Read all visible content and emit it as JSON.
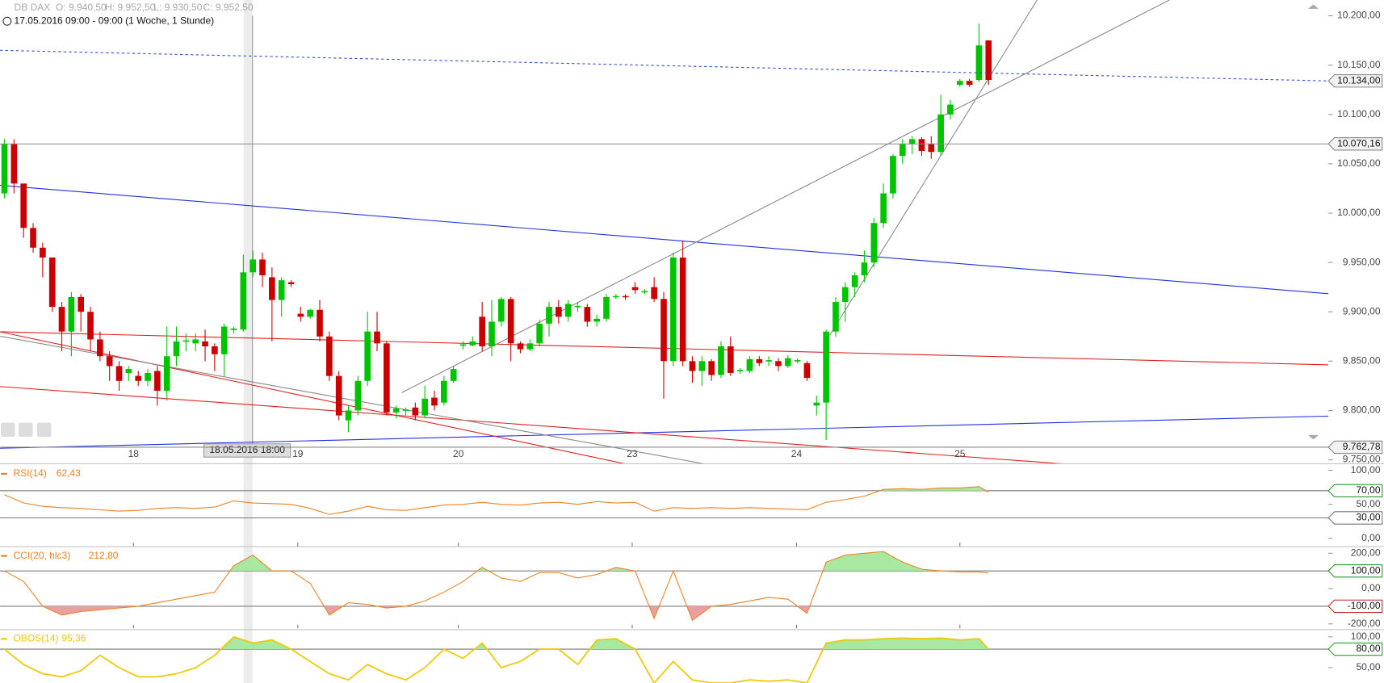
{
  "header": {
    "instrument": "DB DAX",
    "open": "O: 9.940,50",
    "high": "H: 9.952,50",
    "low": "L: 9.930,50",
    "close": "C: 9.952,50",
    "period": "17.05.2016 09:00 - 09:00 (1 Woche, 1 Stunde)"
  },
  "crosshair_label": "18.05.2016 18:00",
  "chart_data": [
    {
      "type": "candlestick",
      "up_color": "#00c400",
      "down_color": "#cc0000",
      "open": [
        10020,
        10070,
        10030,
        9985,
        9965,
        9955,
        9905,
        9880,
        9915,
        9900,
        9872,
        9855,
        9845,
        9838,
        9835,
        9830,
        9840,
        9820,
        9855,
        9870,
        9868,
        9870,
        9865,
        9857,
        9882,
        9882,
        9940,
        9953,
        9935,
        9912,
        9930,
        9898,
        9895,
        9902,
        9875,
        9835,
        9790,
        9800,
        9830,
        9880,
        9868,
        9798,
        9800,
        9803,
        9795,
        9813,
        9808,
        9830,
        9866,
        9866,
        9895,
        9865,
        9890,
        9913,
        9868,
        9862,
        9868,
        9888,
        9905,
        9895,
        9905,
        9905,
        9890,
        9893,
        9915,
        9916,
        9925,
        9920,
        9925,
        9913,
        9850,
        9955,
        9850,
        9840,
        9850,
        9836,
        9865,
        9840,
        9840,
        9852,
        9850,
        9850,
        9845,
        9850,
        9848,
        9805,
        9808,
        9880,
        9910,
        9925,
        9937,
        9950,
        9990,
        10020,
        10058,
        10070,
        10075,
        10070,
        10062,
        10100,
        10130,
        10134,
        10135,
        10175
      ],
      "high": [
        10075,
        10075,
        10030,
        9990,
        9970,
        9955,
        9910,
        9920,
        9918,
        9905,
        9880,
        9860,
        9850,
        9845,
        9840,
        9842,
        9845,
        9885,
        9885,
        9878,
        9878,
        9882,
        9868,
        9888,
        9885,
        9958,
        9962,
        9960,
        9945,
        9935,
        9932,
        9905,
        9903,
        9912,
        9880,
        9840,
        9805,
        9835,
        9900,
        9900,
        9870,
        9805,
        9803,
        9808,
        9825,
        9820,
        9835,
        9845,
        9870,
        9875,
        9910,
        9912,
        9915,
        9915,
        9870,
        9872,
        9892,
        9910,
        9912,
        9912,
        9910,
        9908,
        9897,
        9918,
        9918,
        9918,
        9930,
        9923,
        9935,
        9920,
        9960,
        9972,
        9855,
        9855,
        9852,
        9870,
        9875,
        9843,
        9855,
        9855,
        9855,
        9853,
        9856,
        9853,
        9850,
        9815,
        9882,
        9915,
        9930,
        9940,
        9962,
        9995,
        10030,
        10060,
        10075,
        10078,
        10077,
        10078,
        10120,
        10115,
        10136,
        10136,
        10192,
        10175
      ],
      "low": [
        10015,
        10020,
        9975,
        9960,
        9935,
        9900,
        9860,
        9855,
        9880,
        9860,
        9850,
        9830,
        9820,
        9830,
        9825,
        9825,
        9805,
        9810,
        9845,
        9860,
        9860,
        9850,
        9840,
        9835,
        9878,
        9880,
        9935,
        9925,
        9870,
        9895,
        9925,
        9890,
        9893,
        9870,
        9830,
        9790,
        9778,
        9795,
        9825,
        9860,
        9795,
        9792,
        9795,
        9790,
        9792,
        9800,
        9805,
        9828,
        9862,
        9865,
        9860,
        9855,
        9885,
        9850,
        9858,
        9860,
        9865,
        9875,
        9888,
        9890,
        9900,
        9885,
        9885,
        9890,
        9913,
        9912,
        9918,
        9918,
        9910,
        9812,
        9845,
        9845,
        9828,
        9825,
        9830,
        9833,
        9835,
        9837,
        9838,
        9845,
        9845,
        9840,
        9843,
        9848,
        9830,
        9795,
        9770,
        9875,
        9890,
        9915,
        9930,
        9945,
        9985,
        10015,
        10050,
        10060,
        10058,
        10055,
        10058,
        10095,
        10128,
        10128,
        10133,
        10130
      ],
      "close": [
        10070,
        10030,
        9985,
        9965,
        9955,
        9905,
        9880,
        9915,
        9900,
        9872,
        9855,
        9845,
        9830,
        9842,
        9830,
        9838,
        9820,
        9855,
        9870,
        9871,
        9872,
        9865,
        9857,
        9885,
        9883,
        9940,
        9953,
        9937,
        9912,
        9932,
        9928,
        9895,
        9902,
        9875,
        9835,
        9795,
        9800,
        9830,
        9880,
        9868,
        9798,
        9802,
        9801,
        9795,
        9812,
        9805,
        9830,
        9842,
        9867,
        9870,
        9865,
        9890,
        9913,
        9868,
        9862,
        9868,
        9888,
        9905,
        9895,
        9908,
        9906,
        9890,
        9893,
        9915,
        9916,
        9915,
        9922,
        9921,
        9913,
        9850,
        9955,
        9850,
        9840,
        9850,
        9836,
        9865,
        9838,
        9841,
        9852,
        9848,
        9851,
        9845,
        9853,
        9851,
        9833,
        9808,
        9880,
        9910,
        9925,
        9937,
        9950,
        9990,
        10020,
        10058,
        10070,
        10075,
        10063,
        10062,
        10100,
        10110,
        10134,
        10130,
        10170,
        10135
      ],
      "xlim": [
        -0.462,
        138.1
      ],
      "ylim": [
        9746.5,
        10216
      ],
      "xticks": [
        {
          "value": 13.5,
          "label": "18"
        },
        {
          "value": 30.7,
          "label": "19"
        },
        {
          "value": 47.5,
          "label": "20"
        },
        {
          "value": 65.7,
          "label": "23"
        },
        {
          "value": 82.9,
          "label": "24"
        },
        {
          "value": 100,
          "label": "25"
        }
      ],
      "yticks": [
        {
          "value": 9750,
          "label": "9.750,00"
        },
        {
          "value": 9800,
          "label": "9.800,00"
        },
        {
          "value": 9850,
          "label": "9.850,00"
        },
        {
          "value": 9900,
          "label": "9.900,00"
        },
        {
          "value": 9950,
          "label": "9.950,00"
        },
        {
          "value": 10000,
          "label": "10.000,00"
        },
        {
          "value": 10050,
          "label": "10.050,00"
        },
        {
          "value": 10100,
          "label": "10.100,00"
        },
        {
          "value": 10150,
          "label": "10.150,00"
        },
        {
          "value": 10200,
          "label": "10.200,00"
        }
      ],
      "price_lines": [
        {
          "value": 10134,
          "label": "10.134,00",
          "style": "dashed",
          "color": "#3050d0"
        },
        {
          "value": 10070.16,
          "label": "10.070,16",
          "style": "solid",
          "color": "#888888"
        },
        {
          "value": 9762.78,
          "label": "9.762,78",
          "style": "solid",
          "color": "#888888"
        }
      ]
    },
    {
      "type": "line",
      "title": "RSI(14)",
      "current": "62,43",
      "color": "#f08020",
      "fill_up": "#a8e8a0",
      "fill_down": "#e8a0a0",
      "upper_level": 70,
      "lower_level": 30,
      "x": [
        0,
        2,
        4,
        6,
        8,
        10,
        12,
        14,
        16,
        18,
        20,
        22,
        24,
        26,
        28,
        30,
        32,
        34,
        36,
        38,
        40,
        42,
        44,
        46,
        48,
        50,
        52,
        54,
        56,
        58,
        60,
        62,
        64,
        66,
        68,
        70,
        72,
        74,
        76,
        78,
        80,
        82,
        84,
        86,
        88,
        90,
        92,
        94,
        96,
        98,
        100,
        102,
        103
      ],
      "values": [
        64,
        52,
        47,
        45,
        44,
        42,
        40,
        41,
        44,
        45,
        44,
        46,
        55,
        52,
        51,
        50,
        44,
        35,
        40,
        47,
        42,
        41,
        45,
        49,
        50,
        53,
        50,
        49,
        52,
        53,
        50,
        54,
        52,
        53,
        40,
        45,
        44,
        45,
        44,
        45,
        44,
        43,
        42,
        53,
        57,
        62,
        72,
        73,
        72,
        74,
        74,
        76,
        68
      ],
      "ylim": [
        -10.4,
        107.8
      ],
      "yticks": [
        {
          "value": 0,
          "label": "0,00"
        },
        {
          "value": 30,
          "label": "30,00"
        },
        {
          "value": 50,
          "label": "50,00"
        },
        {
          "value": 70,
          "label": "70,00"
        },
        {
          "value": 100,
          "label": "100,00"
        }
      ]
    },
    {
      "type": "line",
      "title": "CCI(20, hlc3)",
      "current": "212,80",
      "color": "#f08020",
      "fill_up": "#a8e8a0",
      "fill_down": "#e8a0a0",
      "upper_level": 100,
      "lower_level": -100,
      "x": [
        0,
        2,
        4,
        6,
        8,
        10,
        12,
        14,
        16,
        18,
        20,
        22,
        24,
        26,
        28,
        30,
        32,
        34,
        36,
        38,
        40,
        42,
        44,
        46,
        48,
        50,
        52,
        54,
        56,
        58,
        60,
        62,
        64,
        66,
        68,
        70,
        72,
        74,
        76,
        78,
        80,
        82,
        84,
        86,
        88,
        90,
        92,
        94,
        96,
        98,
        100,
        102,
        103
      ],
      "values": [
        100,
        40,
        -100,
        -150,
        -130,
        -120,
        -110,
        -100,
        -80,
        -60,
        -40,
        -20,
        130,
        190,
        100,
        100,
        30,
        -150,
        -80,
        -90,
        -110,
        -100,
        -70,
        -20,
        40,
        120,
        60,
        40,
        90,
        90,
        60,
        80,
        120,
        100,
        -170,
        100,
        -180,
        -100,
        -90,
        -70,
        -50,
        -60,
        -140,
        150,
        190,
        200,
        210,
        150,
        110,
        100,
        95,
        95,
        88
      ],
      "ylim": [
        -225,
        235
      ],
      "yticks": [
        {
          "value": -200,
          "label": "-200,00"
        },
        {
          "value": -100,
          "label": "-100,00"
        },
        {
          "value": 0,
          "label": "0,00"
        },
        {
          "value": 100,
          "label": "100,00"
        },
        {
          "value": 200,
          "label": "200,00"
        }
      ]
    },
    {
      "type": "line",
      "title": "OBOS(14)",
      "current": "95,36",
      "color": "#f0c800",
      "fill_up": "#a8e8a0",
      "upper_level": 80,
      "x": [
        0,
        2,
        4,
        6,
        8,
        10,
        12,
        14,
        16,
        18,
        20,
        22,
        24,
        26,
        28,
        30,
        32,
        34,
        36,
        38,
        40,
        42,
        44,
        46,
        48,
        50,
        52,
        54,
        56,
        58,
        60,
        62,
        64,
        66,
        68,
        70,
        72,
        74,
        76,
        78,
        80,
        82,
        84,
        86,
        88,
        90,
        92,
        94,
        96,
        98,
        100,
        102,
        103
      ],
      "values": [
        80,
        55,
        40,
        35,
        45,
        70,
        50,
        35,
        35,
        40,
        50,
        70,
        100,
        90,
        95,
        80,
        60,
        40,
        30,
        55,
        40,
        30,
        50,
        80,
        65,
        90,
        50,
        60,
        80,
        80,
        55,
        95,
        97,
        80,
        25,
        60,
        30,
        25,
        25,
        30,
        28,
        30,
        25,
        90,
        95,
        95,
        97,
        98,
        97,
        98,
        95,
        97,
        80
      ],
      "ylim": [
        25,
        111
      ],
      "yticks": [
        {
          "value": 50,
          "label": "50,00"
        },
        {
          "value": 80,
          "label": "80,00"
        },
        {
          "value": 100,
          "label": "100,00"
        }
      ]
    }
  ]
}
